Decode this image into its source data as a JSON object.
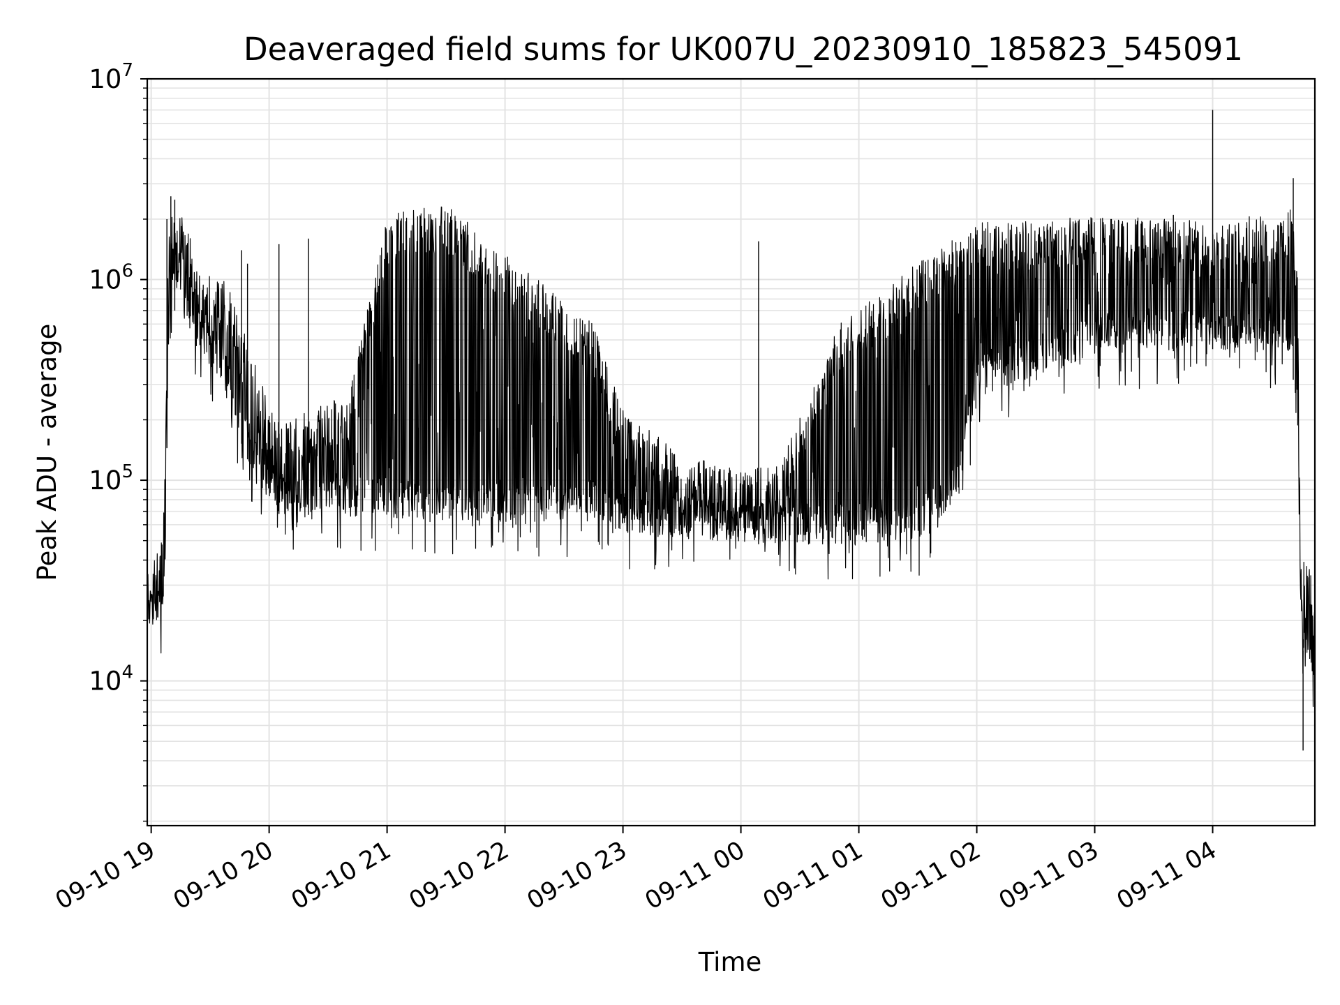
{
  "chart_data": {
    "type": "line",
    "title": "Deaveraged field sums for UK007U_20230910_185823_545091",
    "xlabel": "Time",
    "ylabel": "Peak ADU - average",
    "xlim": [
      "2023-09-10T18:58:00",
      "2023-09-11T04:52:00"
    ],
    "ylim": [
      1900,
      10000000
    ],
    "yscale": "log",
    "grid": true,
    "line_color": "#000000",
    "x_ticks": [
      {
        "label": "09-10 19",
        "t": "2023-09-10T19:00:00"
      },
      {
        "label": "09-10 20",
        "t": "2023-09-10T20:00:00"
      },
      {
        "label": "09-10 21",
        "t": "2023-09-10T21:00:00"
      },
      {
        "label": "09-10 22",
        "t": "2023-09-10T22:00:00"
      },
      {
        "label": "09-10 23",
        "t": "2023-09-10T23:00:00"
      },
      {
        "label": "09-11 00",
        "t": "2023-09-11T00:00:00"
      },
      {
        "label": "09-11 01",
        "t": "2023-09-11T01:00:00"
      },
      {
        "label": "09-11 02",
        "t": "2023-09-11T02:00:00"
      },
      {
        "label": "09-11 03",
        "t": "2023-09-11T03:00:00"
      },
      {
        "label": "09-11 04",
        "t": "2023-09-11T04:00:00"
      }
    ],
    "y_ticks": [
      {
        "base": "10",
        "exp": "4",
        "value": 10000
      },
      {
        "base": "10",
        "exp": "5",
        "value": 100000
      },
      {
        "base": "10",
        "exp": "6",
        "value": 1000000
      },
      {
        "base": "10",
        "exp": "7",
        "value": 10000000
      }
    ],
    "series": [
      {
        "floor": [
          {
            "t": "2023-09-10T18:58:00",
            "v": 18000
          },
          {
            "t": "2023-09-10T19:05:00",
            "v": 20000
          },
          {
            "t": "2023-09-10T19:07:00",
            "v": 30000
          },
          {
            "t": "2023-09-10T19:09:00",
            "v": 700000
          },
          {
            "t": "2023-09-10T19:15:00",
            "v": 700000
          },
          {
            "t": "2023-09-10T19:25:00",
            "v": 420000
          },
          {
            "t": "2023-09-10T19:35:00",
            "v": 320000
          },
          {
            "t": "2023-09-10T19:40:00",
            "v": 250000
          },
          {
            "t": "2023-09-10T19:47:00",
            "v": 140000
          },
          {
            "t": "2023-09-10T19:55:00",
            "v": 95000
          },
          {
            "t": "2023-09-10T20:05:00",
            "v": 68000
          },
          {
            "t": "2023-09-10T21:00:00",
            "v": 65000
          },
          {
            "t": "2023-09-10T22:00:00",
            "v": 62000
          },
          {
            "t": "2023-09-10T22:48:00",
            "v": 62000
          },
          {
            "t": "2023-09-10T23:00:00",
            "v": 55000
          },
          {
            "t": "2023-09-11T00:00:00",
            "v": 48000
          },
          {
            "t": "2023-09-11T00:50:00",
            "v": 48000
          },
          {
            "t": "2023-09-11T01:30:00",
            "v": 50000
          },
          {
            "t": "2023-09-11T01:50:00",
            "v": 80000
          },
          {
            "t": "2023-09-11T02:00:00",
            "v": 260000
          },
          {
            "t": "2023-09-11T03:00:00",
            "v": 420000
          },
          {
            "t": "2023-09-11T04:00:00",
            "v": 450000
          },
          {
            "t": "2023-09-11T04:40:00",
            "v": 420000
          },
          {
            "t": "2023-09-11T04:43:00",
            "v": 180000
          },
          {
            "t": "2023-09-11T04:45:00",
            "v": 15000
          },
          {
            "t": "2023-09-11T04:52:00",
            "v": 10000
          }
        ],
        "ceiling": [
          {
            "t": "2023-09-10T18:58:00",
            "v": 26000
          },
          {
            "t": "2023-09-10T19:05:00",
            "v": 30000
          },
          {
            "t": "2023-09-10T19:07:00",
            "v": 100000
          },
          {
            "t": "2023-09-10T19:09:00",
            "v": 1700000
          },
          {
            "t": "2023-09-10T19:15:00",
            "v": 1500000
          },
          {
            "t": "2023-09-10T19:25:00",
            "v": 800000
          },
          {
            "t": "2023-09-10T19:35:00",
            "v": 700000
          },
          {
            "t": "2023-09-10T19:45:00",
            "v": 500000
          },
          {
            "t": "2023-09-10T19:55:00",
            "v": 220000
          },
          {
            "t": "2023-09-10T20:05:00",
            "v": 130000
          },
          {
            "t": "2023-09-10T20:40:00",
            "v": 180000
          },
          {
            "t": "2023-09-10T21:00:00",
            "v": 1400000
          },
          {
            "t": "2023-09-10T21:30:00",
            "v": 1600000
          },
          {
            "t": "2023-09-10T22:00:00",
            "v": 900000
          },
          {
            "t": "2023-09-10T22:45:00",
            "v": 400000
          },
          {
            "t": "2023-09-10T23:00:00",
            "v": 150000
          },
          {
            "t": "2023-09-10T23:30:00",
            "v": 90000
          },
          {
            "t": "2023-09-11T00:00:00",
            "v": 75000
          },
          {
            "t": "2023-09-11T00:20:00",
            "v": 80000
          },
          {
            "t": "2023-09-11T00:50:00",
            "v": 400000
          },
          {
            "t": "2023-09-11T01:20:00",
            "v": 700000
          },
          {
            "t": "2023-09-11T02:00:00",
            "v": 1300000
          },
          {
            "t": "2023-09-11T03:00:00",
            "v": 1400000
          },
          {
            "t": "2023-09-11T04:00:00",
            "v": 1300000
          },
          {
            "t": "2023-09-11T04:40:00",
            "v": 1500000
          },
          {
            "t": "2023-09-11T04:43:00",
            "v": 800000
          },
          {
            "t": "2023-09-11T04:45:00",
            "v": 30000
          },
          {
            "t": "2023-09-11T04:52:00",
            "v": 22000
          }
        ],
        "spikes": [
          {
            "t": "2023-09-10T19:08:00",
            "v": 2000000
          },
          {
            "t": "2023-09-10T19:10:00",
            "v": 2600000
          },
          {
            "t": "2023-09-10T19:12:00",
            "v": 2500000
          },
          {
            "t": "2023-09-10T19:46:00",
            "v": 1400000
          },
          {
            "t": "2023-09-10T19:49:00",
            "v": 1200000
          },
          {
            "t": "2023-09-10T20:05:00",
            "v": 1500000
          },
          {
            "t": "2023-09-10T20:20:00",
            "v": 1600000
          },
          {
            "t": "2023-09-10T21:05:00",
            "v": 2000000
          },
          {
            "t": "2023-09-11T00:09:00",
            "v": 1550000
          },
          {
            "t": "2023-09-11T02:50:00",
            "v": 1900000
          },
          {
            "t": "2023-09-11T03:40:00",
            "v": 2100000
          },
          {
            "t": "2023-09-11T04:00:00",
            "v": 7000000
          },
          {
            "t": "2023-09-11T04:41:00",
            "v": 3200000
          },
          {
            "t": "2023-09-11T04:46:00",
            "v": 4500
          }
        ]
      }
    ]
  }
}
